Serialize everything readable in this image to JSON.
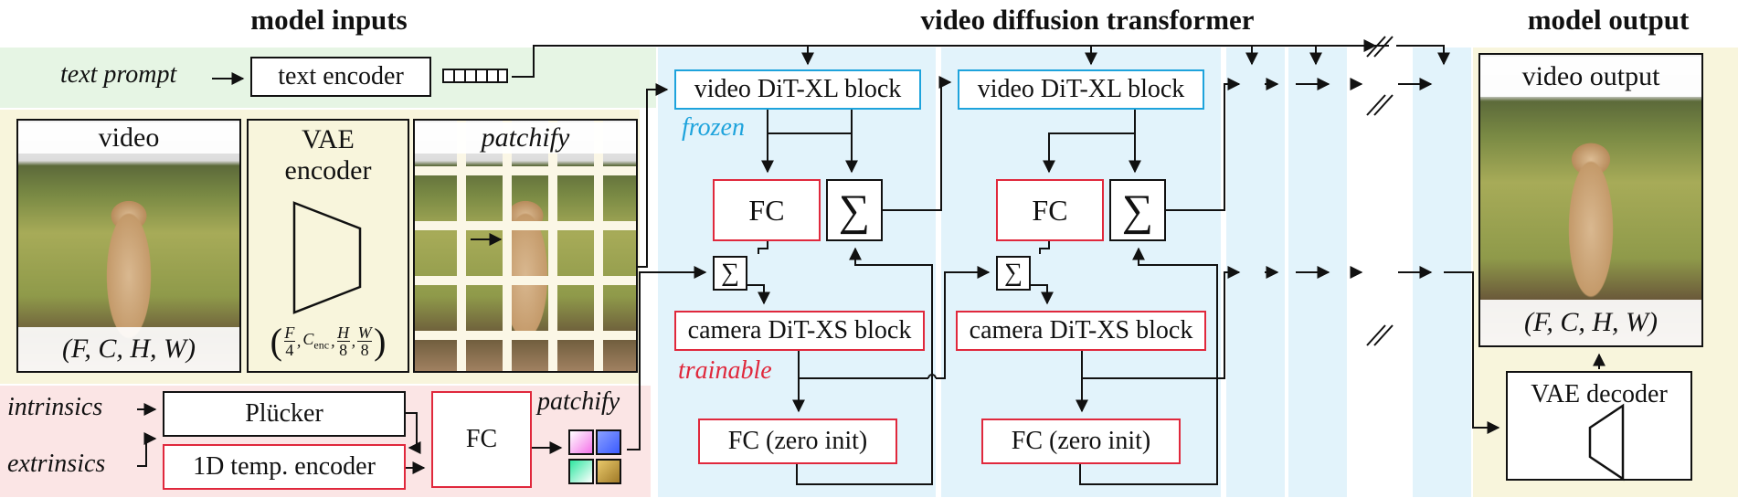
{
  "headings": {
    "inputs": "model inputs",
    "transformer": "video diffusion transformer",
    "output": "model output"
  },
  "text_row": {
    "prompt_label": "text prompt",
    "encoder_label": "text encoder"
  },
  "video_panel": {
    "title": "video",
    "shape": "(F, C, H, W)"
  },
  "vae_encoder": {
    "line1": "VAE",
    "line2": "encoder",
    "shape_F": "F",
    "shape_4": "4",
    "shape_C": "C",
    "shape_enc": "enc",
    "shape_H": "H",
    "shape_W": "W",
    "shape_8": "8"
  },
  "patchify_panel": {
    "title": "patchify"
  },
  "camera_inputs": {
    "intrinsics": "intrinsics",
    "extrinsics": "extrinsics",
    "plucker": "Plücker",
    "temporal_encoder": "1D temp. encoder",
    "fc": "FC",
    "patchify": "patchify",
    "tile_colors": [
      "#f472e8",
      "#3b5bff",
      "#2ee6a0",
      "#c9a23a"
    ]
  },
  "block1": {
    "dit_xl": "video DiT-XL block",
    "frozen": "frozen",
    "fc": "FC",
    "sum_big": "∑",
    "sum_small": "∑",
    "dit_xs": "camera DiT-XS block",
    "trainable": "trainable",
    "fc_zero": "FC (zero init)"
  },
  "block2": {
    "dit_xl": "video DiT-XL block",
    "fc": "FC",
    "sum_big": "∑",
    "sum_small": "∑",
    "dit_xs": "camera DiT-XS block",
    "fc_zero": "FC (zero init)"
  },
  "output_panel": {
    "title": "video output",
    "shape": "(F, C, H, W)",
    "decoder": "VAE decoder"
  },
  "colors": {
    "green_bg": "#e6f5e4",
    "yellow_bg": "#f8f5dc",
    "pink_bg": "#fbe5e5",
    "blue_bg": "#e2f3fb",
    "red": "#e0283c",
    "blue": "#1ea3dc",
    "frozen_blue": "#1ea3dc",
    "trainable_red": "#e0283c"
  },
  "icons": {
    "arrow": "arrow-right",
    "sum": "sigma-icon",
    "parallel_break": "double-slash-icon"
  }
}
